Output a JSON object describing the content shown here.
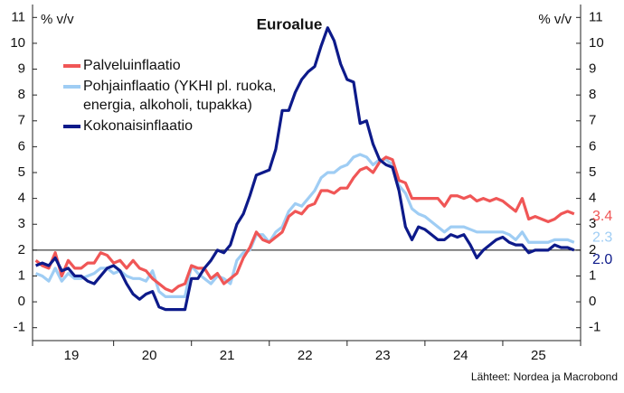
{
  "chart_data": {
    "type": "line",
    "title": "Euroalue",
    "y_label": "% v/v",
    "y2_label": "% v/v",
    "source": "Lähteet: Nordea ja Macrobond",
    "categories": [
      null,
      null,
      null,
      null,
      null,
      null,
      "19",
      null,
      null,
      null,
      null,
      null,
      null,
      null,
      null,
      null,
      null,
      null,
      "20",
      null,
      null,
      null,
      null,
      null,
      null,
      null,
      null,
      null,
      null,
      null,
      "21",
      null,
      null,
      null,
      null,
      null,
      null,
      null,
      null,
      null,
      null,
      null,
      "22",
      null,
      null,
      null,
      null,
      null,
      null,
      null,
      null,
      null,
      null,
      null,
      "23",
      null,
      null,
      null,
      null,
      null,
      null,
      null,
      null,
      null,
      null,
      null,
      "24",
      null,
      null,
      null,
      null,
      null,
      null,
      null,
      null,
      null,
      null,
      null,
      "25",
      null,
      null,
      null,
      null,
      null
    ],
    "ylim": [
      -1.5,
      11.5
    ],
    "yticks": [
      -1,
      0,
      1,
      2,
      3,
      4,
      5,
      6,
      7,
      8,
      9,
      10,
      11
    ],
    "y2lim": [
      -1.5,
      11.5
    ],
    "y2ticks": [
      -1,
      0,
      1,
      2,
      3,
      4,
      5,
      6,
      7,
      8,
      9,
      10,
      11
    ],
    "reference_line": 2,
    "series": [
      {
        "name": "Palveluinflaatio",
        "color": "#f05656",
        "last_label": "3.4",
        "values": [
          1.6,
          1.4,
          1.3,
          1.9,
          1.0,
          1.6,
          1.3,
          1.3,
          1.5,
          1.5,
          1.9,
          1.8,
          1.5,
          1.6,
          1.3,
          1.6,
          1.3,
          1.2,
          0.9,
          0.7,
          0.5,
          0.4,
          0.6,
          0.7,
          1.4,
          1.3,
          1.3,
          0.9,
          1.1,
          0.7,
          0.9,
          1.1,
          1.7,
          2.1,
          2.7,
          2.4,
          2.3,
          2.5,
          2.7,
          3.3,
          3.5,
          3.4,
          3.7,
          3.8,
          4.3,
          4.3,
          4.2,
          4.4,
          4.4,
          4.8,
          5.1,
          5.2,
          5.0,
          5.4,
          5.6,
          5.5,
          4.7,
          4.6,
          4.0,
          4.0,
          4.0,
          4.0,
          4.0,
          3.7,
          4.1,
          4.1,
          4.0,
          4.1,
          3.9,
          4.0,
          3.9,
          4.0,
          3.9,
          3.7,
          3.5,
          4.0,
          3.2,
          3.3,
          3.2,
          3.1,
          3.2,
          3.4,
          3.5,
          3.4
        ]
      },
      {
        "name": "Pohjainflaatio (YKHI pl. ruoka, energia, alkoholi, tupakka)",
        "color": "#9fcdf4",
        "last_label": "2.3",
        "values": [
          1.1,
          1.0,
          0.8,
          1.3,
          0.8,
          1.1,
          0.9,
          0.9,
          1.0,
          1.1,
          1.3,
          1.3,
          1.1,
          1.2,
          1.0,
          0.9,
          0.9,
          0.8,
          1.2,
          0.4,
          0.2,
          0.2,
          0.2,
          0.2,
          1.4,
          1.1,
          0.9,
          0.7,
          1.0,
          0.9,
          0.7,
          1.6,
          1.9,
          2.0,
          2.6,
          2.6,
          2.3,
          2.7,
          2.9,
          3.5,
          3.8,
          3.7,
          4.0,
          4.3,
          4.8,
          5.0,
          5.0,
          5.2,
          5.3,
          5.6,
          5.7,
          5.6,
          5.3,
          5.5,
          5.5,
          5.3,
          4.5,
          4.2,
          3.6,
          3.4,
          3.3,
          3.1,
          2.9,
          2.7,
          2.9,
          2.9,
          2.9,
          2.8,
          2.7,
          2.7,
          2.7,
          2.7,
          2.7,
          2.6,
          2.4,
          2.7,
          2.3,
          2.3,
          2.3,
          2.3,
          2.4,
          2.4,
          2.4,
          2.3
        ]
      },
      {
        "name": "Kokonaisinflaatio",
        "color": "#0d1a8a",
        "last_label": "2.0",
        "values": [
          1.4,
          1.5,
          1.4,
          1.7,
          1.2,
          1.3,
          1.0,
          1.0,
          0.8,
          0.7,
          1.0,
          1.3,
          1.4,
          1.2,
          0.7,
          0.3,
          0.1,
          0.3,
          0.4,
          -0.2,
          -0.3,
          -0.3,
          -0.3,
          -0.3,
          0.9,
          0.9,
          1.3,
          1.6,
          2.0,
          1.9,
          2.2,
          3.0,
          3.4,
          4.1,
          4.9,
          5.0,
          5.1,
          5.9,
          7.4,
          7.4,
          8.1,
          8.6,
          8.9,
          9.1,
          9.9,
          10.6,
          10.1,
          9.2,
          8.6,
          8.5,
          6.9,
          7.0,
          6.1,
          5.5,
          5.3,
          5.2,
          4.3,
          2.9,
          2.4,
          2.9,
          2.8,
          2.6,
          2.4,
          2.4,
          2.6,
          2.5,
          2.6,
          2.2,
          1.7,
          2.0,
          2.2,
          2.4,
          2.5,
          2.3,
          2.2,
          2.2,
          1.9,
          2.0,
          2.0,
          2.0,
          2.2,
          2.1,
          2.1,
          2.0
        ]
      }
    ]
  }
}
